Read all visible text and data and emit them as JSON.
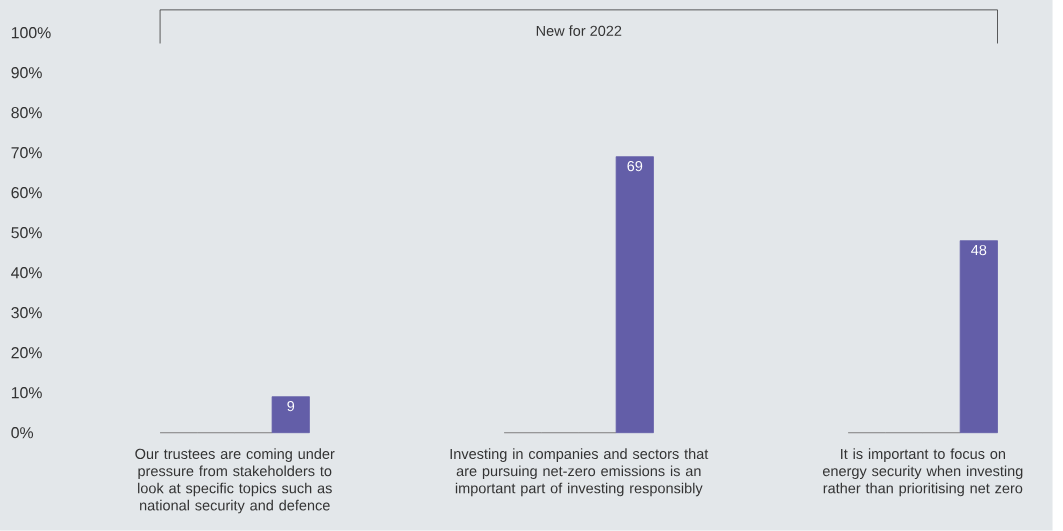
{
  "chart_data": {
    "type": "bar",
    "categories": [
      "Our trustees are coming under pressure from stakeholders to look at specific topics such as national security and defence",
      "Investing in companies and sectors that are pursuing net-zero emissions is an important part of investing responsibly",
      "It is important to focus on energy security when investing rather than prioritising net zero"
    ],
    "series": [
      {
        "color": "#8c8c8c",
        "values": [
          0,
          0,
          0
        ]
      },
      {
        "color": "#8c8c8c",
        "values": [
          0,
          0,
          0
        ]
      },
      {
        "color": "#8c8c8c",
        "values": [
          0,
          0,
          0
        ]
      },
      {
        "color": "#635ea8",
        "values": [
          9,
          69,
          48
        ],
        "value_labels": [
          "9",
          "69",
          "48"
        ]
      }
    ],
    "ylim": [
      0,
      100
    ],
    "yticks": [
      {
        "value": 0,
        "label": "0%"
      },
      {
        "value": 10,
        "label": "10%"
      },
      {
        "value": 20,
        "label": "20%"
      },
      {
        "value": 30,
        "label": "30%"
      },
      {
        "value": 40,
        "label": "40%"
      },
      {
        "value": 50,
        "label": "50%"
      },
      {
        "value": 60,
        "label": "60%"
      },
      {
        "value": 70,
        "label": "70%"
      },
      {
        "value": 80,
        "label": "80%"
      },
      {
        "value": 90,
        "label": "90%"
      },
      {
        "value": 100,
        "label": "100%"
      }
    ],
    "annotations": [
      "New for 2022"
    ]
  }
}
